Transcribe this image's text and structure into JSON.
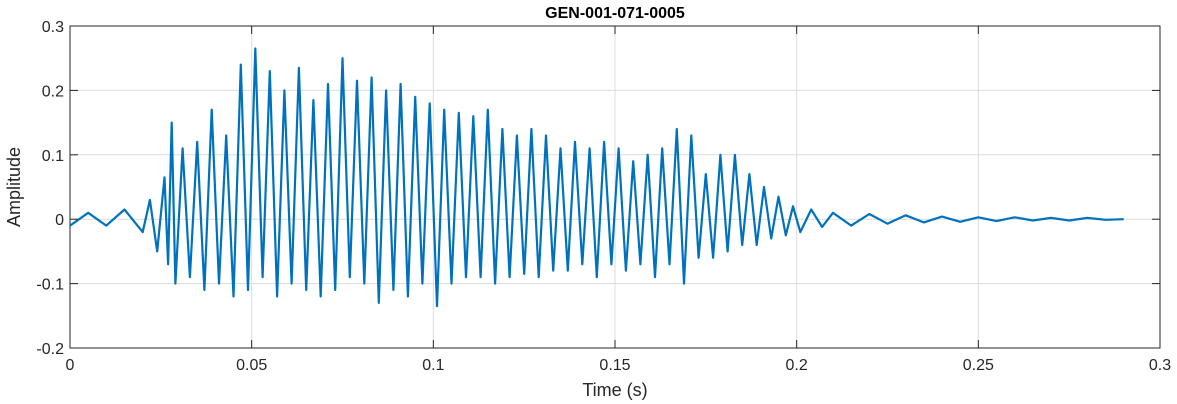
{
  "chart_data": {
    "type": "line",
    "title": "GEN-001-071-0005",
    "xlabel": "Time (s)",
    "ylabel": "Amplitude",
    "xlim": [
      0,
      0.3
    ],
    "ylim": [
      -0.2,
      0.3
    ],
    "xticks": [
      0,
      0.05,
      0.1,
      0.15,
      0.2,
      0.25,
      0.3
    ],
    "xtick_labels": [
      "0",
      "0.05",
      "0.1",
      "0.15",
      "0.2",
      "0.25",
      "0.3"
    ],
    "yticks": [
      -0.2,
      -0.1,
      0,
      0.1,
      0.2,
      0.3
    ],
    "ytick_labels": [
      "-0.2",
      "-0.1",
      "0",
      "0.1",
      "0.2",
      "0.3"
    ],
    "grid": true,
    "line_color": "#0072BD",
    "series": [
      {
        "x": [
          0,
          0.005,
          0.01,
          0.015,
          0.02,
          0.022,
          0.024,
          0.026,
          0.027,
          0.028,
          0.029,
          0.031,
          0.033,
          0.035,
          0.037,
          0.039,
          0.041,
          0.043,
          0.045,
          0.047,
          0.049,
          0.051,
          0.053,
          0.055,
          0.057,
          0.059,
          0.061,
          0.063,
          0.065,
          0.067,
          0.069,
          0.071,
          0.073,
          0.075,
          0.077,
          0.079,
          0.081,
          0.083,
          0.085,
          0.087,
          0.089,
          0.091,
          0.093,
          0.095,
          0.097,
          0.099,
          0.101,
          0.103,
          0.105,
          0.107,
          0.109,
          0.111,
          0.113,
          0.115,
          0.117,
          0.119,
          0.121,
          0.123,
          0.125,
          0.127,
          0.129,
          0.131,
          0.133,
          0.135,
          0.137,
          0.139,
          0.141,
          0.143,
          0.145,
          0.147,
          0.149,
          0.151,
          0.153,
          0.155,
          0.157,
          0.159,
          0.161,
          0.163,
          0.165,
          0.167,
          0.169,
          0.171,
          0.173,
          0.175,
          0.177,
          0.179,
          0.181,
          0.183,
          0.185,
          0.187,
          0.189,
          0.191,
          0.193,
          0.195,
          0.197,
          0.199,
          0.201,
          0.204,
          0.207,
          0.21,
          0.215,
          0.22,
          0.225,
          0.23,
          0.235,
          0.24,
          0.245,
          0.25,
          0.255,
          0.26,
          0.265,
          0.27,
          0.275,
          0.28,
          0.285,
          0.29
        ],
        "y": [
          -0.01,
          0.01,
          -0.01,
          0.015,
          -0.02,
          0.03,
          -0.05,
          0.065,
          -0.07,
          0.15,
          -0.1,
          0.11,
          -0.09,
          0.12,
          -0.11,
          0.17,
          -0.1,
          0.13,
          -0.12,
          0.24,
          -0.11,
          0.265,
          -0.09,
          0.23,
          -0.12,
          0.2,
          -0.1,
          0.235,
          -0.11,
          0.185,
          -0.12,
          0.21,
          -0.11,
          0.25,
          -0.09,
          0.215,
          -0.1,
          0.22,
          -0.13,
          0.2,
          -0.11,
          0.21,
          -0.12,
          0.19,
          -0.1,
          0.18,
          -0.135,
          0.17,
          -0.1,
          0.165,
          -0.09,
          0.16,
          -0.09,
          0.17,
          -0.1,
          0.14,
          -0.09,
          0.13,
          -0.085,
          0.14,
          -0.09,
          0.13,
          -0.08,
          0.11,
          -0.08,
          0.12,
          -0.07,
          0.11,
          -0.09,
          0.12,
          -0.07,
          0.11,
          -0.08,
          0.09,
          -0.07,
          0.1,
          -0.09,
          0.11,
          -0.07,
          0.14,
          -0.1,
          0.13,
          -0.06,
          0.07,
          -0.06,
          0.1,
          -0.05,
          0.1,
          -0.04,
          0.07,
          -0.04,
          0.05,
          -0.03,
          0.035,
          -0.025,
          0.02,
          -0.02,
          0.015,
          -0.012,
          0.01,
          -0.01,
          0.008,
          -0.007,
          0.006,
          -0.005,
          0.004,
          -0.004,
          0.003,
          -0.003,
          0.003,
          -0.002,
          0.002,
          -0.002,
          0.002,
          -0.001,
          0.0
        ]
      }
    ]
  }
}
